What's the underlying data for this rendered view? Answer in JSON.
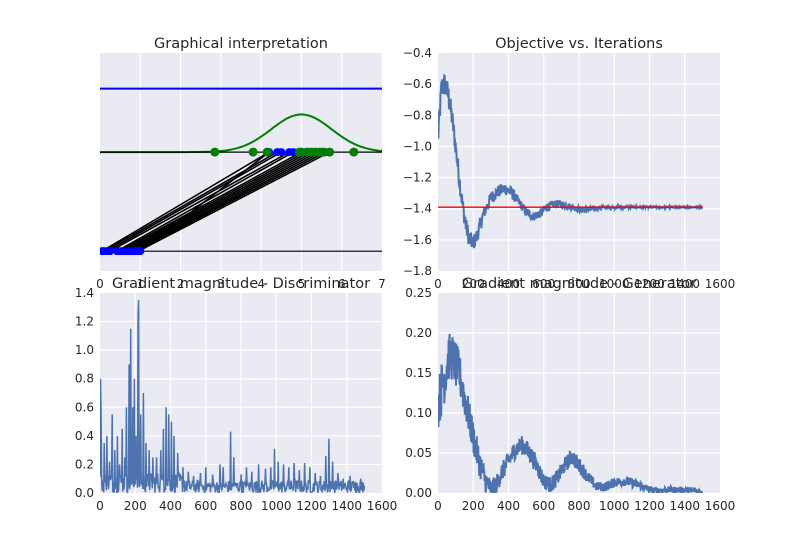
{
  "chart_data": [
    {
      "type": "line",
      "title": "Graphical interpretation",
      "xlim": [
        0,
        7
      ],
      "ylim": [
        -0.1,
        1.0
      ],
      "xticks": [
        0,
        1,
        2,
        3,
        4,
        5,
        6,
        7
      ],
      "grid": true,
      "series": [
        {
          "role": "discriminator-line",
          "color": "#0000ff",
          "x": [
            0,
            7
          ],
          "y": [
            0.82,
            0.82
          ]
        },
        {
          "role": "density-curve",
          "color": "#008000",
          "gaussian": {
            "mean": 5.0,
            "std": 0.75,
            "peak": 0.69,
            "base": 0.5
          }
        },
        {
          "role": "baseline-upper",
          "color": "#000000",
          "x": [
            0,
            7
          ],
          "y": [
            0.5,
            0.5
          ]
        },
        {
          "role": "baseline-lower",
          "color": "#000000",
          "x": [
            0,
            7
          ],
          "y": [
            0.0,
            0.0
          ]
        }
      ],
      "noise_points": [
        0.05,
        0.1,
        0.18,
        0.25,
        0.42,
        0.48,
        0.55,
        0.62,
        0.68,
        0.75,
        0.82,
        0.88,
        0.95,
        1.0
      ],
      "mapped_points": [
        4.2,
        4.4,
        4.5,
        4.7,
        4.8,
        5.0,
        5.1,
        5.2,
        5.3,
        5.4,
        5.5,
        5.6,
        5.7
      ],
      "data_points": [
        2.85,
        3.8,
        4.15,
        4.95,
        5.0,
        5.15,
        5.25,
        5.35,
        5.45,
        5.55,
        5.7,
        6.3
      ],
      "data_color": "#008000",
      "point_color": "#0000ff"
    },
    {
      "type": "line",
      "title": "Objective vs. Iterations",
      "xlim": [
        0,
        1600
      ],
      "ylim": [
        -1.8,
        -0.4
      ],
      "xticks": [
        0,
        200,
        400,
        600,
        800,
        1000,
        1200,
        1400,
        1600
      ],
      "yticks": [
        -1.8,
        -1.6,
        -1.4,
        -1.2,
        -1.0,
        -0.8,
        -0.6,
        -0.4
      ],
      "grid": true,
      "series": [
        {
          "role": "objective",
          "color": "#4c72b0",
          "x": [
            0,
            20,
            40,
            60,
            80,
            100,
            120,
            140,
            160,
            180,
            200,
            220,
            240,
            260,
            280,
            300,
            340,
            380,
            420,
            460,
            500,
            540,
            580,
            620,
            660,
            700,
            760,
            820,
            880,
            940,
            1000,
            1100,
            1200,
            1300,
            1400,
            1500
          ],
          "y": [
            -0.95,
            -0.62,
            -0.6,
            -0.68,
            -0.82,
            -1.0,
            -1.2,
            -1.38,
            -1.52,
            -1.6,
            -1.62,
            -1.58,
            -1.5,
            -1.43,
            -1.38,
            -1.33,
            -1.29,
            -1.27,
            -1.3,
            -1.36,
            -1.42,
            -1.45,
            -1.43,
            -1.39,
            -1.37,
            -1.37,
            -1.39,
            -1.41,
            -1.4,
            -1.39,
            -1.39,
            -1.39,
            -1.39,
            -1.39,
            -1.39,
            -1.39
          ],
          "noise": [
            0.08,
            0.08,
            0.08,
            0.08,
            0.07,
            0.07,
            0.07,
            0.06,
            0.06,
            0.06,
            0.05,
            0.05,
            0.05,
            0.04,
            0.04,
            0.04,
            0.04,
            0.04,
            0.04,
            0.03,
            0.03,
            0.03,
            0.03,
            0.03,
            0.025,
            0.025,
            0.02,
            0.02,
            0.015,
            0.012,
            0.01,
            0.008,
            0.006,
            0.005,
            0.005,
            0.004
          ]
        },
        {
          "role": "reference",
          "color": "#ff0000",
          "x": [
            0,
            1500
          ],
          "y": [
            -1.39,
            -1.39
          ]
        }
      ]
    },
    {
      "type": "line",
      "title": "Gradient magnitude - Discriminator",
      "xlim": [
        0,
        1600
      ],
      "ylim": [
        0.0,
        1.4
      ],
      "xticks": [
        0,
        200,
        400,
        600,
        800,
        1000,
        1200,
        1400,
        1600
      ],
      "yticks": [
        0.0,
        0.2,
        0.4,
        0.6,
        0.8,
        1.0,
        1.2,
        1.4
      ],
      "grid": true,
      "series": [
        {
          "role": "discriminator-gradient",
          "color": "#4c72b0",
          "baseline_max": 0.09,
          "spikes": [
            [
              2,
              0.8
            ],
            [
              5,
              0.55
            ],
            [
              25,
              0.35
            ],
            [
              40,
              0.4
            ],
            [
              55,
              0.22
            ],
            [
              70,
              0.55
            ],
            [
              85,
              0.3
            ],
            [
              100,
              0.4
            ],
            [
              110,
              0.2
            ],
            [
              125,
              0.45
            ],
            [
              140,
              0.25
            ],
            [
              150,
              0.6
            ],
            [
              165,
              0.9
            ],
            [
              175,
              1.15
            ],
            [
              185,
              0.6
            ],
            [
              195,
              0.8
            ],
            [
              205,
              0.4
            ],
            [
              215,
              1.25
            ],
            [
              220,
              1.35
            ],
            [
              230,
              0.55
            ],
            [
              245,
              0.7
            ],
            [
              260,
              0.35
            ],
            [
              280,
              0.3
            ],
            [
              300,
              0.25
            ],
            [
              320,
              0.25
            ],
            [
              345,
              0.3
            ],
            [
              360,
              0.45
            ],
            [
              375,
              0.6
            ],
            [
              390,
              0.55
            ],
            [
              405,
              0.5
            ],
            [
              420,
              0.4
            ],
            [
              440,
              0.28
            ],
            [
              470,
              0.18
            ],
            [
              500,
              0.15
            ],
            [
              530,
              0.12
            ],
            [
              570,
              0.14
            ],
            [
              600,
              0.18
            ],
            [
              640,
              0.13
            ],
            [
              680,
              0.2
            ],
            [
              700,
              0.18
            ],
            [
              740,
              0.43
            ],
            [
              760,
              0.25
            ],
            [
              800,
              0.13
            ],
            [
              830,
              0.18
            ],
            [
              860,
              0.15
            ],
            [
              900,
              0.2
            ],
            [
              940,
              0.17
            ],
            [
              970,
              0.18
            ],
            [
              990,
              0.31
            ],
            [
              1010,
              0.22
            ],
            [
              1040,
              0.2
            ],
            [
              1070,
              0.18
            ],
            [
              1100,
              0.21
            ],
            [
              1130,
              0.16
            ],
            [
              1160,
              0.21
            ],
            [
              1190,
              0.18
            ],
            [
              1220,
              0.14
            ],
            [
              1250,
              0.12
            ],
            [
              1280,
              0.26
            ],
            [
              1300,
              0.38
            ],
            [
              1320,
              0.22
            ],
            [
              1350,
              0.14
            ],
            [
              1380,
              0.1
            ],
            [
              1420,
              0.12
            ],
            [
              1450,
              0.08
            ],
            [
              1480,
              0.1
            ],
            [
              1500,
              0.05
            ]
          ]
        }
      ]
    },
    {
      "type": "line",
      "title": "Gradient magnitude - Generator",
      "xlim": [
        0,
        1600
      ],
      "ylim": [
        0.0,
        0.25
      ],
      "xticks": [
        0,
        200,
        400,
        600,
        800,
        1000,
        1200,
        1400,
        1600
      ],
      "yticks": [
        0.0,
        0.05,
        0.1,
        0.15,
        0.2,
        0.25
      ],
      "grid": true,
      "series": [
        {
          "role": "generator-gradient",
          "color": "#4c72b0",
          "x": [
            0,
            20,
            40,
            60,
            80,
            100,
            120,
            150,
            180,
            210,
            240,
            270,
            300,
            330,
            360,
            400,
            440,
            480,
            520,
            560,
            600,
            640,
            680,
            720,
            760,
            800,
            850,
            900,
            950,
            1000,
            1050,
            1100,
            1150,
            1200,
            1250,
            1300,
            1350,
            1400,
            1450,
            1500
          ],
          "y": [
            0.11,
            0.13,
            0.15,
            0.17,
            0.17,
            0.16,
            0.15,
            0.12,
            0.09,
            0.06,
            0.035,
            0.015,
            0.005,
            0.01,
            0.025,
            0.04,
            0.055,
            0.06,
            0.05,
            0.035,
            0.015,
            0.01,
            0.02,
            0.035,
            0.045,
            0.035,
            0.02,
            0.008,
            0.008,
            0.013,
            0.015,
            0.013,
            0.009,
            0.004,
            0.003,
            0.004,
            0.004,
            0.004,
            0.003,
            0.002
          ],
          "noise": [
            0.03,
            0.035,
            0.035,
            0.03,
            0.03,
            0.03,
            0.028,
            0.025,
            0.022,
            0.02,
            0.018,
            0.015,
            0.012,
            0.012,
            0.012,
            0.012,
            0.012,
            0.012,
            0.012,
            0.012,
            0.01,
            0.01,
            0.01,
            0.01,
            0.01,
            0.01,
            0.008,
            0.006,
            0.006,
            0.006,
            0.006,
            0.006,
            0.005,
            0.004,
            0.004,
            0.004,
            0.004,
            0.004,
            0.003,
            0.003
          ]
        }
      ]
    }
  ]
}
